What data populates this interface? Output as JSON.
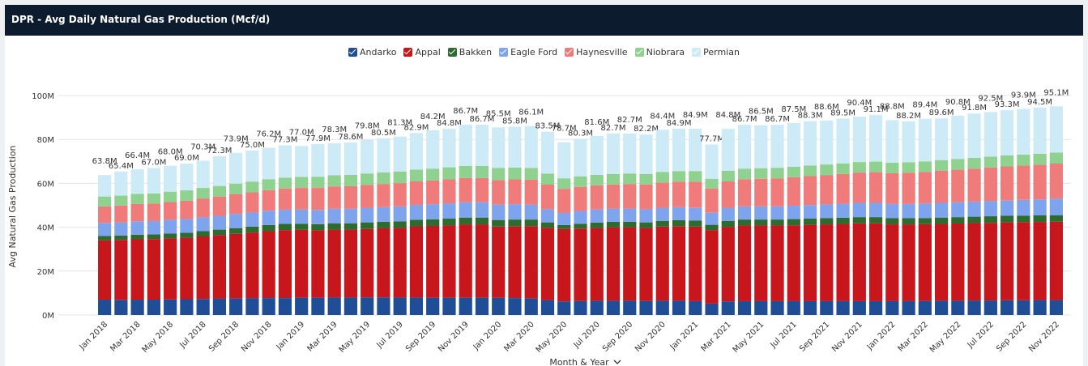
{
  "chart_data": {
    "type": "stacked_bar",
    "title": "DPR - Avg Daily Natural Gas Production (Mcf/d)",
    "y_label": "Avg Natural Gas Production",
    "x_label": "Month & Year",
    "categories": [
      "Jan 2018",
      null,
      "Mar 2018",
      null,
      "May 2018",
      null,
      "Jul 2018",
      null,
      "Sep 2018",
      null,
      "Nov 2018",
      null,
      "Jan 2019",
      null,
      "Mar 2019",
      null,
      "May 2019",
      null,
      "Jul 2019",
      null,
      "Sep 2019",
      null,
      "Nov 2019",
      null,
      "Jan 2020",
      null,
      "Mar 2020",
      null,
      "May 2020",
      null,
      "Jul 2020",
      null,
      "Sep 2020",
      null,
      "Nov 2020",
      null,
      "Jan 2021",
      null,
      "Mar 2021",
      null,
      "May 2021",
      null,
      "Jul 2021",
      null,
      "Sep 2021",
      null,
      "Nov 2021",
      null,
      "Jan 2022",
      null,
      "Mar 2022",
      null,
      "May 2022",
      null,
      "Jul 2022",
      null,
      "Sep 2022",
      null,
      "Nov 2022"
    ],
    "series": [
      {
        "name": "Andarko",
        "color": "#1f4e96",
        "values": [
          7.0,
          6.9,
          7.0,
          7.0,
          7.1,
          7.2,
          7.3,
          7.4,
          7.5,
          7.6,
          7.7,
          7.7,
          7.8,
          7.8,
          7.9,
          7.9,
          8.0,
          8.0,
          7.9,
          7.9,
          7.8,
          7.8,
          7.8,
          7.8,
          7.8,
          7.7,
          7.5,
          6.8,
          6.2,
          6.4,
          6.5,
          6.5,
          6.5,
          6.4,
          6.5,
          6.5,
          6.3,
          5.2,
          6.2,
          6.3,
          6.3,
          6.3,
          6.3,
          6.3,
          6.3,
          6.3,
          6.3,
          6.3,
          6.3,
          6.3,
          6.4,
          6.5,
          6.5,
          6.6,
          6.6,
          6.7,
          6.7,
          6.8,
          6.8
        ]
      },
      {
        "name": "Appal",
        "color": "#c8161d",
        "values": [
          27.0,
          27.3,
          27.5,
          27.6,
          27.8,
          28.0,
          28.5,
          29.0,
          29.5,
          30.0,
          30.5,
          31.0,
          31.0,
          30.8,
          31.0,
          31.0,
          31.2,
          31.5,
          31.8,
          32.5,
          32.8,
          33.0,
          33.5,
          33.5,
          32.5,
          32.8,
          33.0,
          33.0,
          33.0,
          33.0,
          33.2,
          33.5,
          33.5,
          33.3,
          33.8,
          34.0,
          34.0,
          33.5,
          34.0,
          34.5,
          34.5,
          34.5,
          34.6,
          34.8,
          35.0,
          35.2,
          35.5,
          35.5,
          35.0,
          35.0,
          35.0,
          35.0,
          35.2,
          35.3,
          35.4,
          35.5,
          35.6,
          35.6,
          35.7
        ]
      },
      {
        "name": "Bakken",
        "color": "#2e6b2e",
        "values": [
          2.0,
          2.0,
          2.1,
          2.1,
          2.2,
          2.3,
          2.4,
          2.5,
          2.6,
          2.7,
          2.8,
          2.8,
          2.8,
          2.8,
          2.9,
          2.9,
          3.0,
          3.0,
          3.0,
          3.0,
          3.0,
          3.1,
          3.1,
          3.1,
          3.0,
          3.0,
          3.0,
          2.4,
          1.8,
          2.2,
          2.4,
          2.5,
          2.5,
          2.5,
          2.6,
          2.7,
          2.7,
          2.4,
          2.7,
          2.7,
          2.7,
          2.7,
          2.8,
          2.8,
          2.8,
          2.8,
          2.8,
          2.8,
          2.8,
          2.8,
          2.8,
          2.9,
          2.9,
          2.9,
          3.0,
          3.0,
          3.0,
          3.0,
          3.0
        ]
      },
      {
        "name": "Eagle Ford",
        "color": "#7fa4ee",
        "values": [
          6.0,
          6.0,
          6.1,
          6.1,
          6.2,
          6.2,
          6.3,
          6.3,
          6.4,
          6.4,
          6.5,
          6.5,
          6.5,
          6.5,
          6.6,
          6.6,
          6.7,
          6.7,
          6.8,
          6.8,
          6.9,
          7.0,
          7.0,
          7.0,
          7.0,
          7.0,
          6.8,
          6.0,
          5.5,
          5.8,
          6.0,
          6.0,
          6.0,
          6.0,
          6.0,
          6.0,
          6.0,
          5.5,
          6.0,
          6.0,
          6.0,
          6.0,
          6.1,
          6.2,
          6.3,
          6.4,
          6.5,
          6.5,
          6.5,
          6.5,
          6.6,
          6.7,
          6.8,
          6.9,
          7.0,
          7.1,
          7.2,
          7.3,
          7.5
        ]
      },
      {
        "name": "Haynesville",
        "color": "#ef7b7b",
        "values": [
          7.5,
          7.7,
          7.9,
          8.0,
          8.2,
          8.4,
          8.6,
          8.8,
          9.0,
          9.2,
          9.4,
          9.6,
          9.8,
          10.0,
          10.2,
          10.3,
          10.4,
          10.5,
          10.6,
          10.7,
          10.8,
          10.9,
          11.0,
          11.0,
          11.2,
          11.3,
          11.4,
          11.2,
          11.0,
          11.0,
          11.0,
          11.0,
          11.2,
          11.3,
          11.5,
          11.6,
          11.8,
          11.0,
          12.0,
          12.4,
          12.6,
          12.8,
          13.0,
          13.2,
          13.4,
          13.6,
          13.8,
          14.0,
          14.0,
          14.2,
          14.4,
          14.6,
          14.8,
          15.0,
          15.2,
          15.4,
          15.6,
          15.8,
          16.0
        ]
      },
      {
        "name": "Niobrara",
        "color": "#8fd18f",
        "values": [
          4.5,
          4.5,
          4.6,
          4.6,
          4.7,
          4.7,
          4.8,
          4.8,
          4.9,
          4.9,
          5.0,
          5.0,
          5.0,
          5.1,
          5.1,
          5.2,
          5.2,
          5.3,
          5.3,
          5.4,
          5.4,
          5.5,
          5.5,
          5.5,
          5.5,
          5.4,
          5.3,
          5.0,
          4.8,
          4.8,
          4.8,
          4.8,
          4.8,
          4.8,
          4.8,
          4.8,
          4.8,
          4.5,
          4.8,
          4.8,
          4.8,
          4.8,
          4.8,
          4.8,
          4.8,
          4.8,
          4.8,
          4.8,
          4.8,
          4.8,
          4.8,
          4.9,
          4.9,
          4.9,
          5.0,
          5.0,
          5.0,
          5.0,
          5.0
        ]
      },
      {
        "name": "Permian",
        "color": "#cdeaf7",
        "values": [
          9.8,
          11.0,
          11.2,
          11.6,
          11.8,
          12.2,
          12.4,
          13.5,
          14.0,
          14.2,
          14.3,
          14.7,
          14.1,
          14.9,
          14.6,
          14.7,
          15.3,
          15.5,
          15.9,
          16.6,
          17.5,
          17.5,
          18.8,
          18.8,
          18.5,
          18.6,
          19.1,
          19.1,
          16.4,
          17.1,
          17.7,
          18.4,
          18.2,
          17.9,
          19.2,
          19.3,
          19.3,
          15.6,
          19.1,
          20.0,
          19.6,
          19.6,
          19.9,
          20.2,
          20.0,
          20.4,
          20.7,
          21.2,
          19.4,
          18.6,
          19.4,
          19.0,
          19.7,
          20.2,
          20.3,
          20.6,
          20.8,
          21.0,
          21.1
        ]
      }
    ],
    "totals": {
      "values": [
        63.8,
        65.4,
        66.4,
        67.0,
        68.0,
        69.0,
        70.3,
        72.3,
        73.9,
        75.0,
        76.2,
        77.3,
        77.0,
        77.9,
        78.3,
        78.6,
        79.8,
        80.5,
        81.3,
        82.9,
        84.2,
        84.8,
        86.7,
        86.7,
        85.5,
        85.8,
        86.1,
        83.5,
        78.7,
        80.3,
        81.6,
        82.7,
        82.7,
        82.2,
        84.4,
        84.9,
        84.9,
        77.7,
        84.8,
        86.7,
        86.5,
        86.7,
        87.5,
        88.3,
        88.6,
        89.5,
        90.4,
        91.1,
        88.8,
        88.2,
        89.4,
        89.6,
        90.8,
        91.8,
        92.5,
        93.3,
        93.9,
        94.5,
        95.1
      ],
      "value_labels": [
        "63.8M",
        "65.4M",
        "66.4M",
        "67.0M",
        "68.0M",
        "69.0M",
        "70.3M",
        "72.3M",
        "73.9M",
        "75.0M",
        "76.2M",
        "77.3M",
        "77.0M",
        "77.9M",
        "78.3M",
        "78.6M",
        "79.8M",
        "80.5M",
        "81.3M",
        "82.9M",
        "84.2M",
        "84.8M",
        "86.7M",
        "86.7M",
        "85.5M",
        "85.8M",
        "86.1M",
        "83.5M",
        "78.7M",
        "80.3M",
        "81.6M",
        "82.7M",
        "82.7M",
        "82.2M",
        "84.4M",
        "84.9M",
        "84.9M",
        "77.7M",
        "84.8M",
        "86.7M",
        "86.5M",
        "86.7M",
        "87.5M",
        "88.3M",
        "88.6M",
        "89.5M",
        "90.4M",
        "91.1M",
        "88.8M",
        "88.2M",
        "89.4M",
        "89.6M",
        "90.8M",
        "91.8M",
        "92.5M",
        "93.3M",
        "93.9M",
        "94.5M",
        "95.1M"
      ]
    },
    "ylim": [
      0,
      100
    ],
    "yticks": [
      {
        "value": 0,
        "label": "0M"
      },
      {
        "value": 20,
        "label": "20M"
      },
      {
        "value": 40,
        "label": "40M"
      },
      {
        "value": 60,
        "label": "60M"
      },
      {
        "value": 80,
        "label": "80M"
      },
      {
        "value": 100,
        "label": "100M"
      }
    ],
    "grid": true,
    "legend": "top"
  }
}
